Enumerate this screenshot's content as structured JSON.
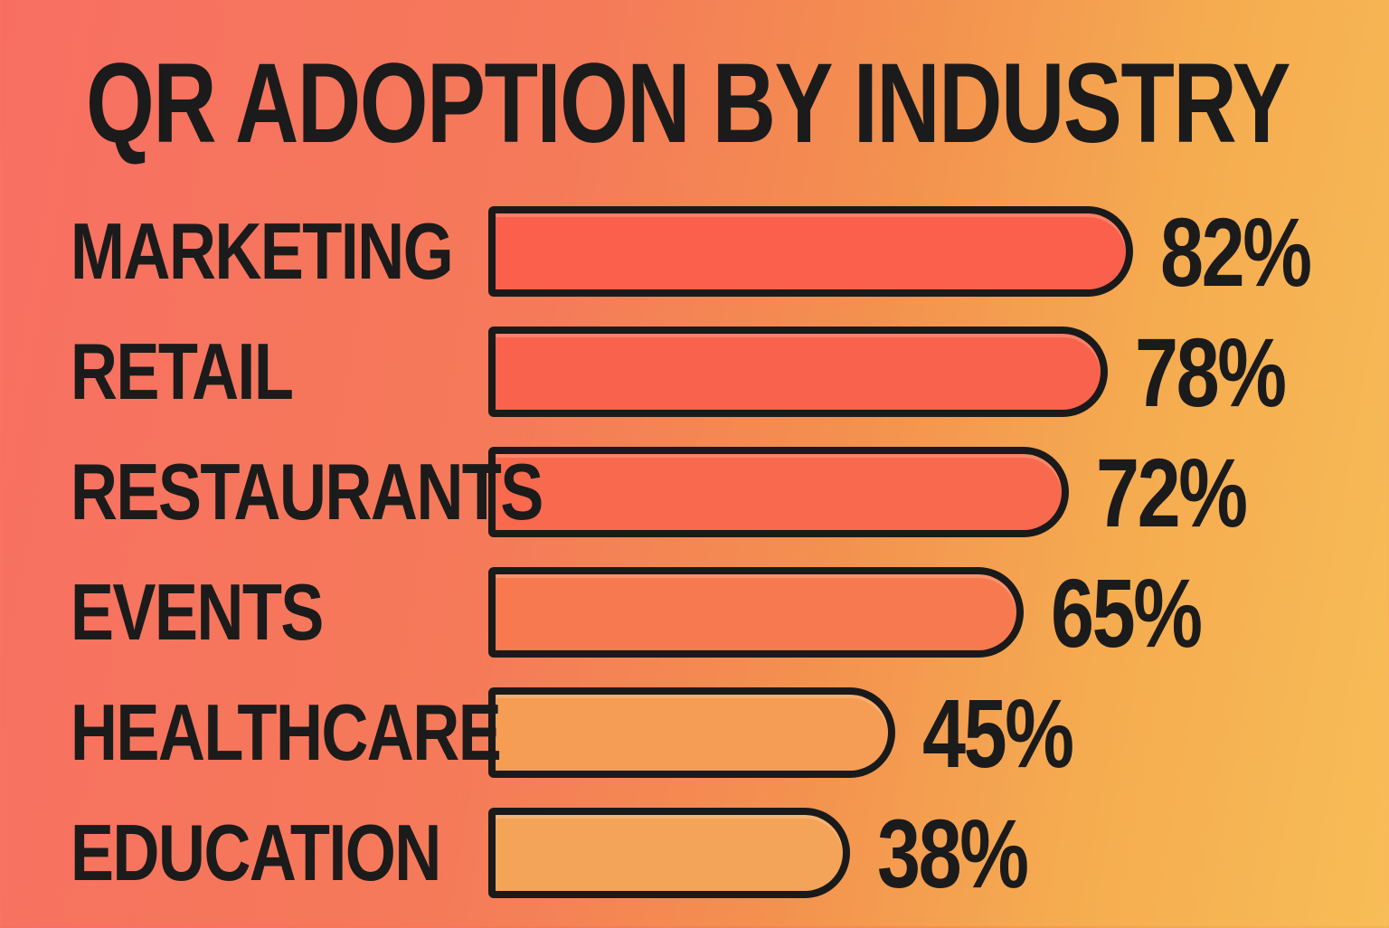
{
  "title": "QR ADOPTION BY INDUSTRY",
  "chart_data": {
    "type": "bar",
    "orientation": "horizontal",
    "title": "QR ADOPTION BY INDUSTRY",
    "categories": [
      "MARKETING",
      "RETAIL",
      "RESTAURANTS",
      "EVENTS",
      "HEALTHCARE",
      "EDUCATION"
    ],
    "values": [
      82,
      78,
      72,
      65,
      45,
      38
    ],
    "value_labels": [
      "82%",
      "78%",
      "72%",
      "65%",
      "45%",
      "38%"
    ],
    "xlim": [
      0,
      100
    ],
    "grid": false,
    "legend": false,
    "bar_fill_colors": [
      "#fa604c",
      "#f9624d",
      "#f8694e",
      "#f7794f",
      "#f59d55",
      "#f3a458"
    ],
    "bar_outline_color": "#1a1a1a",
    "text_color": "#1b1b1b",
    "background_gradient": [
      "#f86f62",
      "#f7bd56"
    ]
  }
}
